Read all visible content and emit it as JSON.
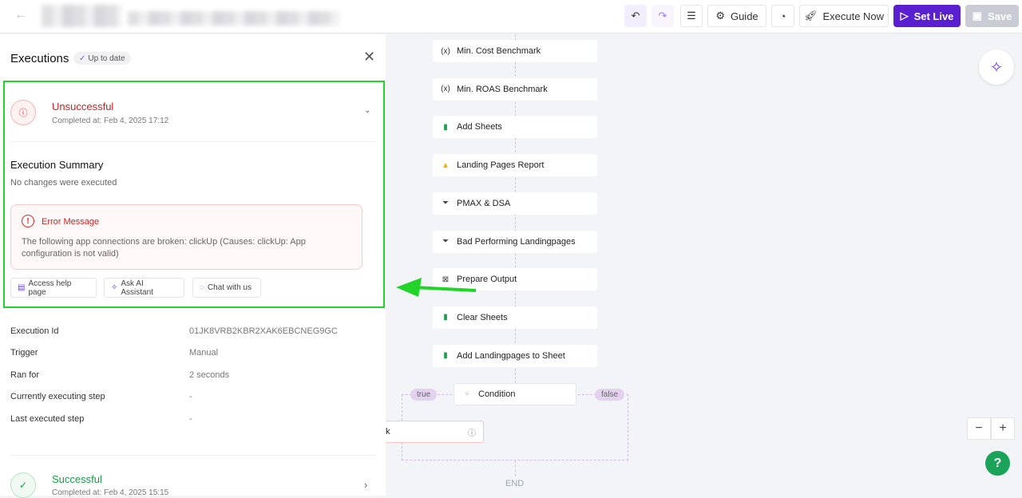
{
  "topbar": {
    "undo_icon": "undo-icon",
    "redo_icon": "redo-icon",
    "guide": "Guide",
    "execute_now": "Execute Now",
    "set_live": "Set Live",
    "save": "Save",
    "accent": "#5a1fd1"
  },
  "panel": {
    "title": "Executions",
    "badge": "Up to date",
    "current": {
      "status": "Unsuccessful",
      "completed": "Completed at: Feb 4, 2025 17:12",
      "summary_title": "Execution Summary",
      "summary_text": "No changes were executed",
      "error_title": "Error Message",
      "error_text": "The following app connections are broken: clickUp (Causes: clickUp: App configuration is not valid)",
      "buttons": [
        "Access help page",
        "Ask AI Assistant",
        "Chat with us"
      ]
    },
    "details": [
      {
        "label": "Execution Id",
        "value": "01JK8VRB2KBR2XAK6EBCNEG9GC"
      },
      {
        "label": "Trigger",
        "value": "Manual"
      },
      {
        "label": "Ran for",
        "value": "2 seconds"
      },
      {
        "label": "Currently executing step",
        "value": "-"
      },
      {
        "label": "Last executed step",
        "value": "-"
      }
    ],
    "previous": {
      "status": "Successful",
      "completed": "Completed at: Feb 4, 2025 15:15"
    }
  },
  "canvas": {
    "nodes": [
      {
        "label": "Min. Cost Benchmark",
        "icon": "(x)"
      },
      {
        "label": "Min. ROAS Benchmark",
        "icon": "(x)"
      },
      {
        "label": "Add Sheets",
        "icon": "sheets"
      },
      {
        "label": "Landing Pages Report",
        "icon": "google-ads"
      },
      {
        "label": "PMAX & DSA",
        "icon": "filter"
      },
      {
        "label": "Bad Performing Landingpages",
        "icon": "filter"
      },
      {
        "label": "Prepare Output",
        "icon": "code"
      },
      {
        "label": "Clear Sheets",
        "icon": "sheets"
      },
      {
        "label": "Add Landingpages to Sheet",
        "icon": "sheets"
      }
    ],
    "condition": "Condition",
    "true_label": "true",
    "false_label": "false",
    "branch_node": "k",
    "end": "END",
    "help": "?"
  }
}
